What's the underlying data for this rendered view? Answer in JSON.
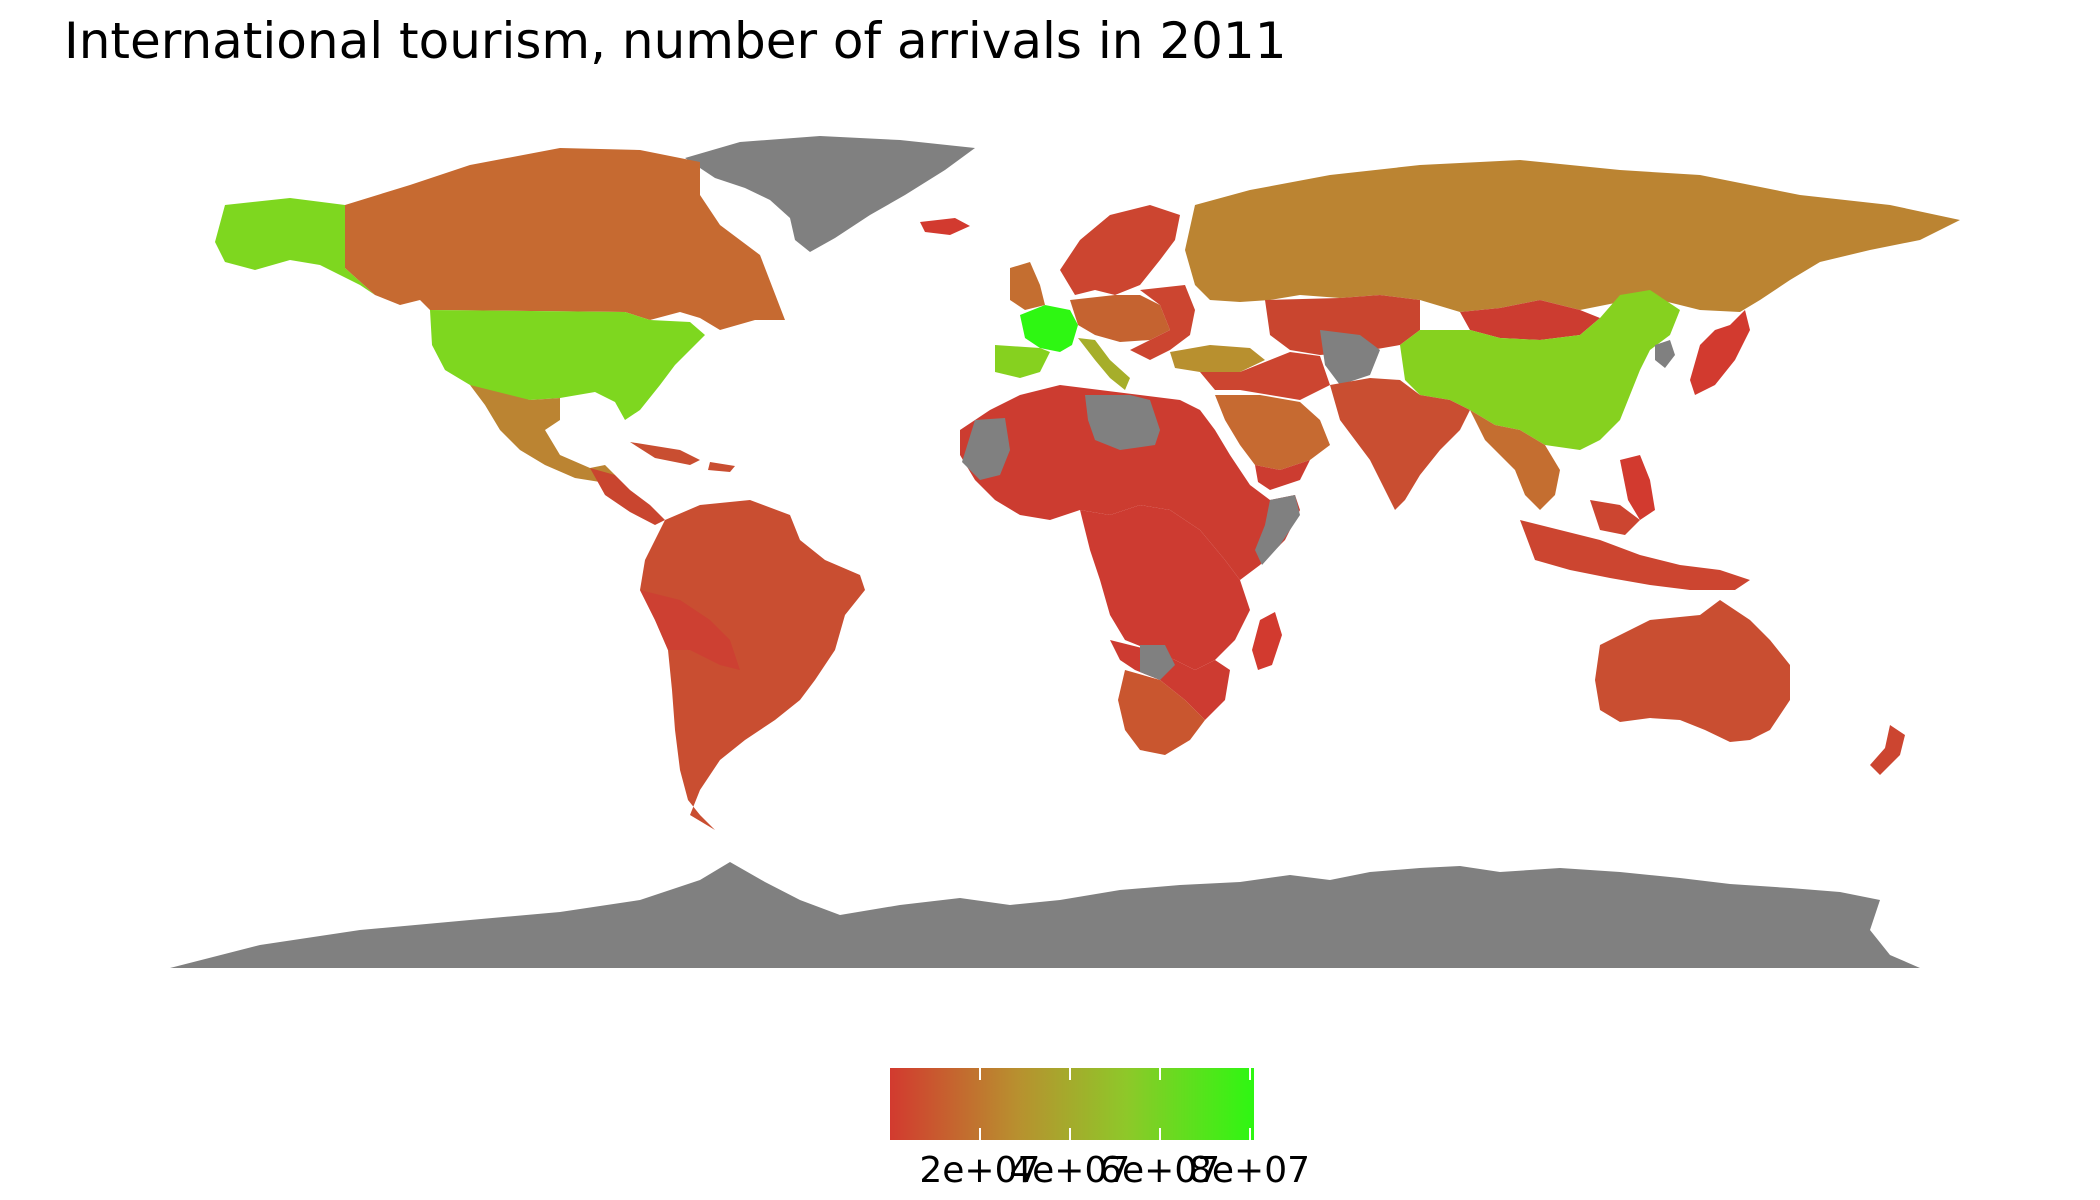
{
  "title": "International tourism, number of arrivals in 2011",
  "colors": {
    "low": "#d23a2f",
    "mid": "#b8902f",
    "high": "#2ef712",
    "no_data": "#808080",
    "background": "#ffffff"
  },
  "chart_data": {
    "type": "choropleth",
    "title": "International tourism, number of arrivals in 2011",
    "legend": {
      "placement": "bottom",
      "tick_labels": [
        "2e+07",
        "4e+07",
        "6e+07",
        "8e+07"
      ],
      "tick_values": [
        20000000,
        40000000,
        60000000,
        80000000
      ],
      "range": [
        0,
        81000000
      ]
    },
    "regions": [
      {
        "name": "France",
        "value": 81000000,
        "color": "#2ef712"
      },
      {
        "name": "United States",
        "value": 62000000,
        "color": "#7ed71f"
      },
      {
        "name": "China",
        "value": 57000000,
        "color": "#86d11f"
      },
      {
        "name": "Spain",
        "value": 57000000,
        "color": "#86d11f"
      },
      {
        "name": "Italy",
        "value": 46000000,
        "color": "#a6ae2a"
      },
      {
        "name": "Turkey",
        "value": 29000000,
        "color": "#b8902f"
      },
      {
        "name": "Russia",
        "value": 23000000,
        "color": "#bb8432"
      },
      {
        "name": "Mexico",
        "value": 23000000,
        "color": "#bb8432"
      },
      {
        "name": "Canada",
        "value": 16000000,
        "color": "#c66a31"
      },
      {
        "name": "Saudi Arabia",
        "value": 17000000,
        "color": "#c66a31"
      },
      {
        "name": "Thailand",
        "value": 19000000,
        "color": "#c46e30"
      },
      {
        "name": "South Africa",
        "value": 8000000,
        "color": "#c9562f"
      },
      {
        "name": "Australia",
        "value": 6000000,
        "color": "#c94e31"
      },
      {
        "name": "India",
        "value": 6000000,
        "color": "#c94e31"
      },
      {
        "name": "Brazil",
        "value": 5000000,
        "color": "#c94e31"
      }
    ]
  }
}
